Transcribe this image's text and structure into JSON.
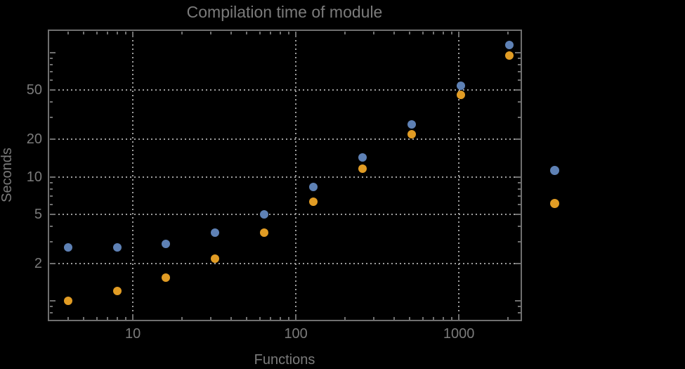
{
  "window": {
    "background_color": "#000000",
    "text_color": "#7b7b7b",
    "frame_color": "#6f6f6f",
    "grid_color": "#9e9e9e"
  },
  "chart_data": {
    "type": "scatter",
    "title": "Compilation time of module",
    "xlabel": "Functions",
    "ylabel": "Seconds",
    "x_scale": "log",
    "y_scale": "log",
    "grid": "dotted, at labeled ticks only",
    "xlim": [
      3.05,
      2404
    ],
    "ylim": [
      0.7,
      151
    ],
    "x_ticks": [
      10,
      100,
      1000
    ],
    "x_tick_labels": [
      "10",
      "100",
      "1000"
    ],
    "y_ticks": [
      2,
      5,
      10,
      20,
      50
    ],
    "y_tick_labels": [
      "2",
      "5",
      "10",
      "20",
      "50"
    ],
    "y_major_ticks_unlabeled": [
      1,
      100
    ],
    "x": [
      4,
      8,
      16,
      32,
      64,
      128,
      256,
      512,
      1024,
      2048
    ],
    "series": [
      {
        "name": "series-blue",
        "color": "#5E81B5",
        "values": [
          2.7,
          2.7,
          2.9,
          3.55,
          5.0,
          8.3,
          14.3,
          26.5,
          54,
          115
        ]
      },
      {
        "name": "series-orange",
        "color": "#E19C24",
        "values": [
          1.0,
          1.2,
          1.55,
          2.2,
          3.55,
          6.3,
          11.6,
          22,
          45.5,
          94.5
        ]
      }
    ],
    "legend": {
      "position": "right-of-plot",
      "note": "marker dots only, labels not visible on black background",
      "items": [
        {
          "color": "#5E81B5",
          "label": ""
        },
        {
          "color": "#E19C24",
          "label": ""
        }
      ]
    }
  }
}
